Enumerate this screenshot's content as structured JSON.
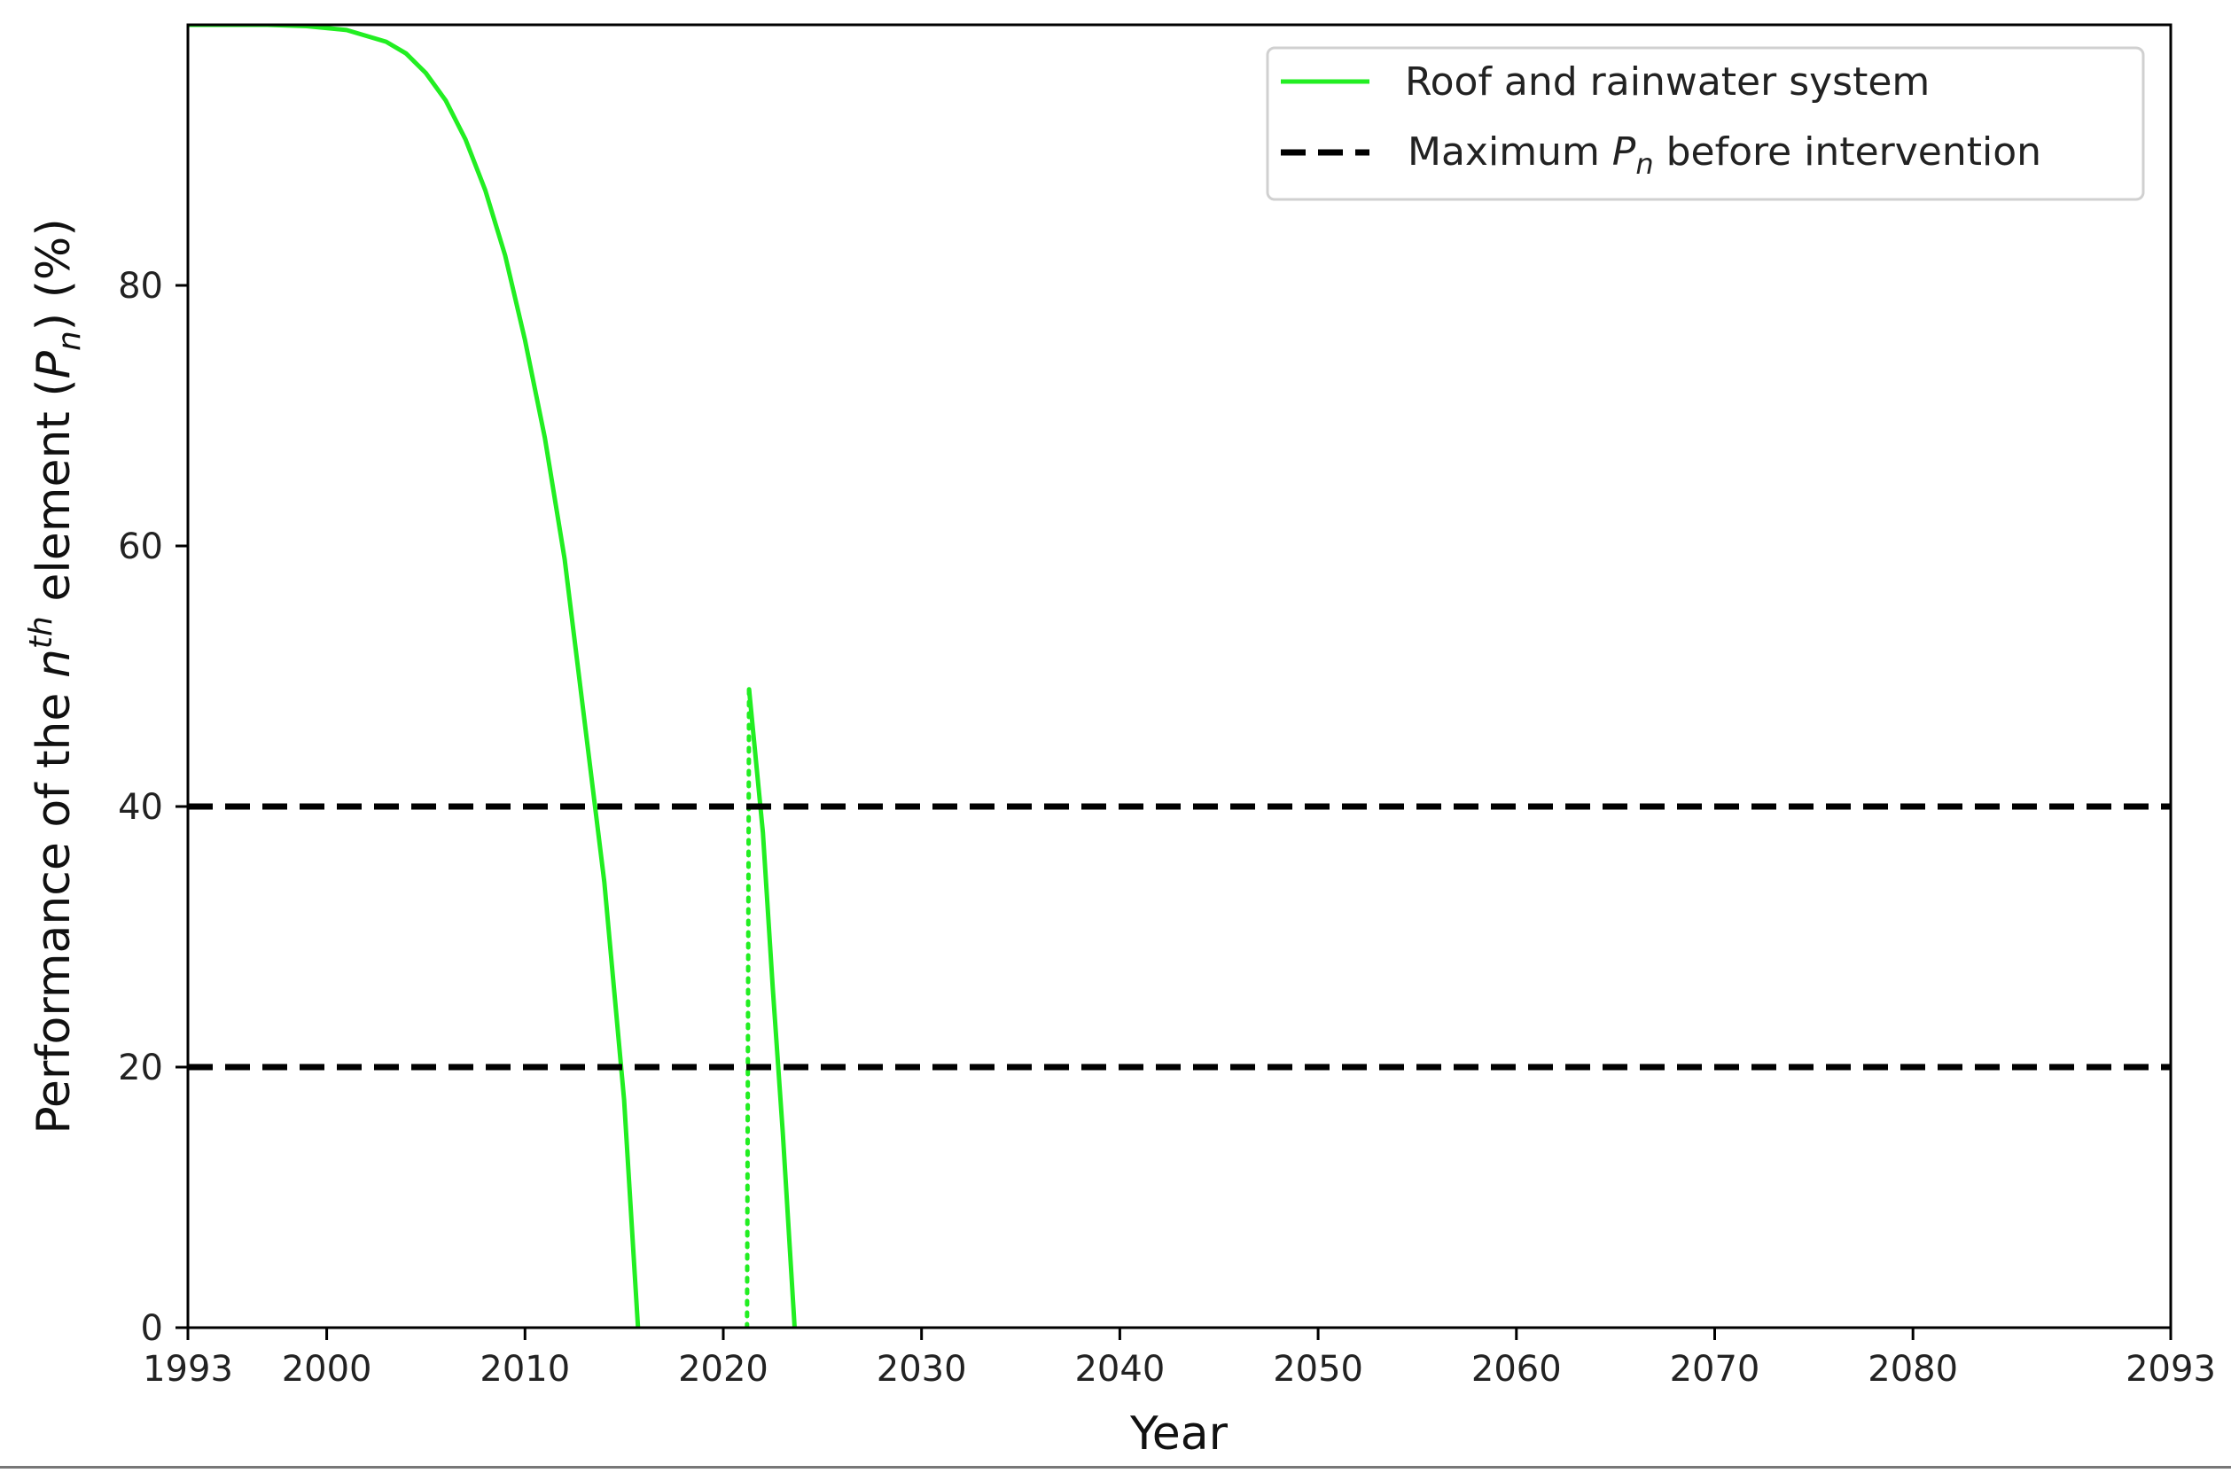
{
  "chart_data": {
    "type": "line",
    "xlabel": "Year",
    "ylabel": {
      "prefix": "Performance of the ",
      "n": "n",
      "sup": "th",
      "middle": " element (",
      "P": "P",
      "sub": "n",
      "suffix": ") (%)"
    },
    "xlim": [
      1993,
      2093
    ],
    "ylim": [
      0,
      100
    ],
    "x_ticks": [
      1993,
      2000,
      2010,
      2020,
      2030,
      2040,
      2050,
      2060,
      2070,
      2080,
      2093
    ],
    "y_ticks": [
      0,
      20,
      40,
      60,
      80
    ],
    "grid": false,
    "legend_position": "top-right",
    "series": [
      {
        "name": "Roof and rainwater system",
        "color": "#22ee22",
        "style": "solid",
        "segments": [
          {
            "x": [
              1993,
              1995,
              1997,
              1999,
              2001,
              2003,
              2004,
              2005,
              2006,
              2007,
              2008,
              2009,
              2010,
              2011,
              2012,
              2013,
              2014,
              2015,
              2015.7
            ],
            "y": [
              100,
              100,
              100,
              99.9,
              99.6,
              98.7,
              97.8,
              96.3,
              94.2,
              91.2,
              87.3,
              82.3,
              75.8,
              68.3,
              59.0,
              46.6,
              34.2,
              17.5,
              0
            ]
          },
          {
            "x": [
              2021.3,
              2022.0,
              2022.5,
              2023.0,
              2023.6
            ],
            "y": [
              49,
              38,
              26,
              15,
              0
            ]
          }
        ]
      },
      {
        "name": "",
        "color": "#22ee22",
        "style": "dotted",
        "segments": [
          {
            "x": [
              2021.2,
              2021.3
            ],
            "y": [
              0,
              49
            ]
          }
        ]
      },
      {
        "name": "Maximum P_n before intervention",
        "color": "#000000",
        "style": "dashed",
        "hlines": [
          40,
          20
        ]
      }
    ],
    "legend": [
      {
        "text": "Roof and rainwater system",
        "style": "solid",
        "color": "#22ee22"
      },
      {
        "prefix": "Maximum ",
        "P": "P",
        "sub": "n",
        "suffix": " before intervention",
        "style": "dashed",
        "color": "#000000"
      }
    ]
  }
}
